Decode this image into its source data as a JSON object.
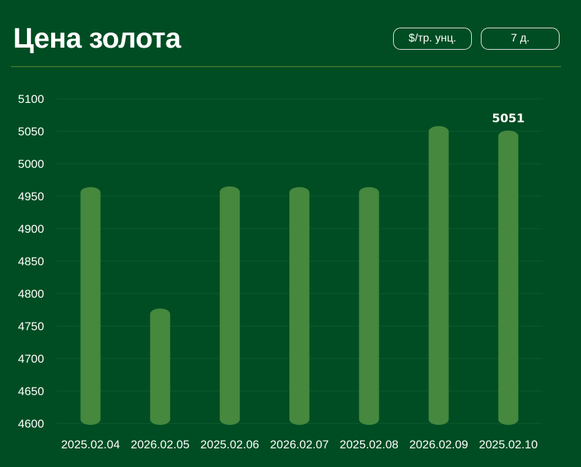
{
  "header": {
    "title": "Цена золота",
    "unit_button": "$/тр. унц.",
    "period_button": "7 д."
  },
  "colors": {
    "background": "#004d23",
    "bar": "#45883e",
    "grid": "#0d5a2c"
  },
  "chart_data": {
    "type": "bar",
    "categories": [
      "2025.02.04",
      "2026.02.05",
      "2025.02.06",
      "2026.02.07",
      "2025.02.08",
      "2026.02.09",
      "2025.02.10"
    ],
    "values": [
      4964,
      4777,
      4965,
      4964,
      4964,
      5058,
      5051
    ],
    "ylim": [
      4600,
      5100
    ],
    "yticks": [
      4600,
      4650,
      4700,
      4750,
      4800,
      4850,
      4900,
      4950,
      5000,
      5050,
      5100
    ],
    "annotation": {
      "index": 6,
      "text": "5051"
    },
    "grid": true
  }
}
